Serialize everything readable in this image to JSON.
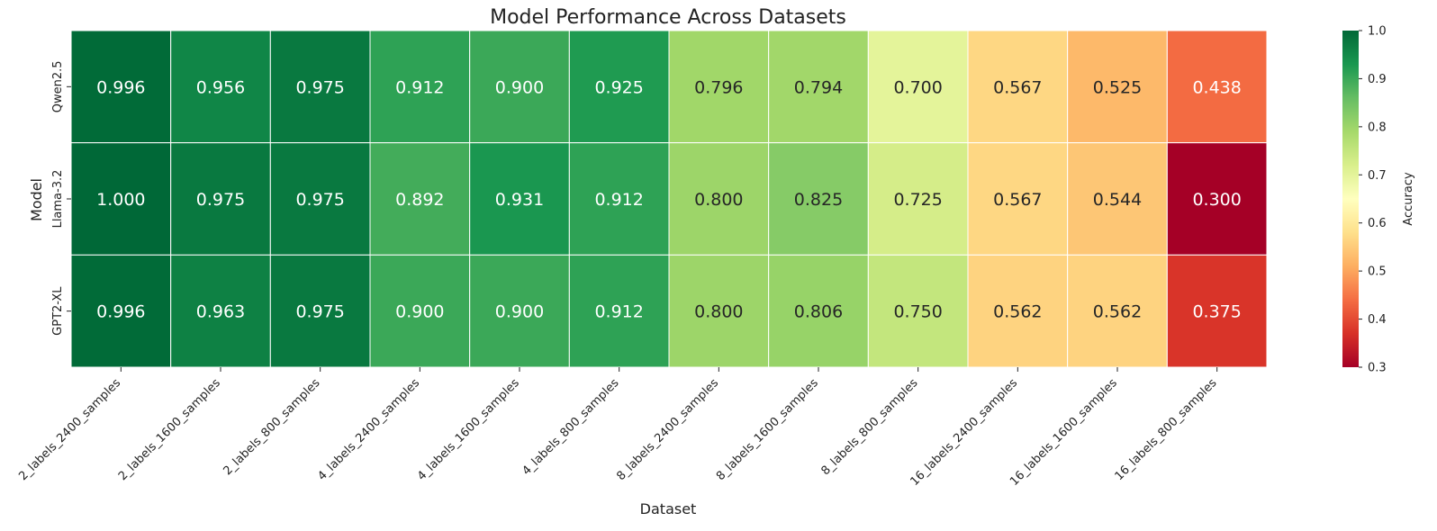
{
  "chart_data": {
    "type": "heatmap",
    "title": "Model Performance Across Datasets",
    "xlabel": "Dataset",
    "ylabel": "Model",
    "colorbar_label": "Accuracy",
    "vmin": 0.3,
    "vmax": 1.0,
    "colorbar_ticks": [
      "0.3",
      "0.4",
      "0.5",
      "0.6",
      "0.7",
      "0.8",
      "0.9",
      "1.0"
    ],
    "colormap": "RdYlGn",
    "x_categories": [
      "2_labels_2400_samples",
      "2_labels_1600_samples",
      "2_labels_800_samples",
      "4_labels_2400_samples",
      "4_labels_1600_samples",
      "4_labels_800_samples",
      "8_labels_2400_samples",
      "8_labels_1600_samples",
      "8_labels_800_samples",
      "16_labels_2400_samples",
      "16_labels_1600_samples",
      "16_labels_800_samples"
    ],
    "y_categories": [
      "Qwen2.5",
      "Llama-3.2",
      "GPT2-XL"
    ],
    "values": [
      [
        0.996,
        0.956,
        0.975,
        0.912,
        0.9,
        0.925,
        0.796,
        0.794,
        0.7,
        0.567,
        0.525,
        0.438
      ],
      [
        1.0,
        0.975,
        0.975,
        0.892,
        0.931,
        0.912,
        0.8,
        0.825,
        0.725,
        0.567,
        0.544,
        0.3
      ],
      [
        0.996,
        0.963,
        0.975,
        0.9,
        0.9,
        0.912,
        0.8,
        0.806,
        0.75,
        0.562,
        0.562,
        0.375
      ]
    ],
    "value_labels": [
      [
        "0.996",
        "0.956",
        "0.975",
        "0.912",
        "0.900",
        "0.925",
        "0.796",
        "0.794",
        "0.700",
        "0.567",
        "0.525",
        "0.438"
      ],
      [
        "1.000",
        "0.975",
        "0.975",
        "0.892",
        "0.931",
        "0.912",
        "0.800",
        "0.825",
        "0.725",
        "0.567",
        "0.544",
        "0.300"
      ],
      [
        "0.996",
        "0.963",
        "0.975",
        "0.900",
        "0.900",
        "0.912",
        "0.800",
        "0.806",
        "0.750",
        "0.562",
        "0.562",
        "0.375"
      ]
    ]
  }
}
